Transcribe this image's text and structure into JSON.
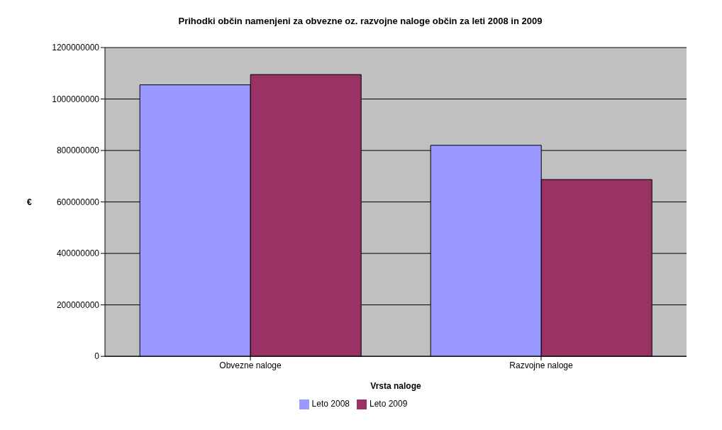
{
  "chart_data": {
    "type": "bar",
    "title": "Prihodki občin namenjeni za obvezne oz. razvojne naloge občin za leti 2008 in 2009",
    "xlabel": "Vrsta naloge",
    "ylabel": "€",
    "categories": [
      "Obvezne naloge",
      "Razvojne naloge"
    ],
    "series": [
      {
        "name": "Leto 2008",
        "color": "#9999ff",
        "values": [
          1055000000,
          820000000
        ]
      },
      {
        "name": "Leto 2009",
        "color": "#993366",
        "values": [
          1095000000,
          687000000
        ]
      }
    ],
    "ylim": [
      0,
      1200000000
    ],
    "yticks": [
      0,
      200000000,
      400000000,
      600000000,
      800000000,
      1000000000,
      1200000000
    ],
    "grid": "y",
    "legend": "bottom"
  }
}
